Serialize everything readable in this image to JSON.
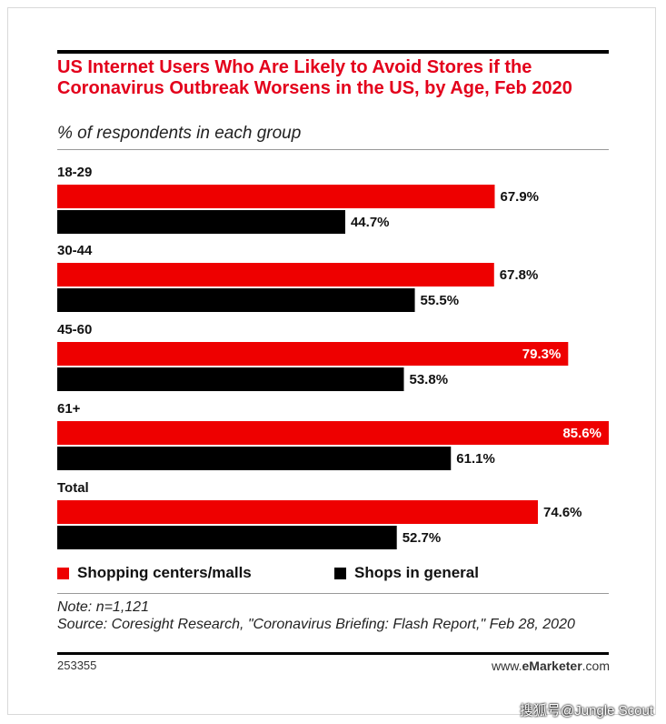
{
  "header": {
    "title": "US Internet Users Who Are Likely to Avoid Stores if the Coronavirus Outbreak Worsens in the US, by Age, Feb 2020",
    "subtitle": "% of respondents in each group"
  },
  "colors": {
    "series1": "#ee0000",
    "series2": "#000000",
    "accent": "#e3001b"
  },
  "chart_data": {
    "type": "bar",
    "orientation": "horizontal",
    "title": "US Internet Users Who Are Likely to Avoid Stores if the Coronavirus Outbreak Worsens in the US, by Age, Feb 2020",
    "subtitle": "% of respondents in each group",
    "categories": [
      "18-29",
      "30-44",
      "45-60",
      "61+",
      "Total"
    ],
    "series": [
      {
        "name": "Shopping centers/malls",
        "values": [
          67.9,
          67.8,
          79.3,
          85.6,
          74.6
        ],
        "labels": [
          "67.9%",
          "67.8%",
          "79.3%",
          "85.6%",
          "74.6%"
        ]
      },
      {
        "name": "Shops in general",
        "values": [
          44.7,
          55.5,
          53.8,
          61.1,
          52.7
        ],
        "labels": [
          "44.7%",
          "55.5%",
          "53.8%",
          "61.1%",
          "52.7%"
        ]
      }
    ],
    "xlim": [
      0,
      85.6
    ],
    "grid": false,
    "legend_position": "bottom"
  },
  "legend": {
    "item1": "Shopping centers/malls",
    "item2": "Shops in general"
  },
  "footer": {
    "note": "Note: n=1,121",
    "source": "Source: Coresight Research, \"Coronavirus Briefing: Flash Report,\" Feb 28, 2020",
    "code": "253355",
    "brand_pre": "www.",
    "brand_bold": "eMarketer",
    "brand_post": ".com",
    "watermark": "搜狐号@Jungle Scout"
  }
}
